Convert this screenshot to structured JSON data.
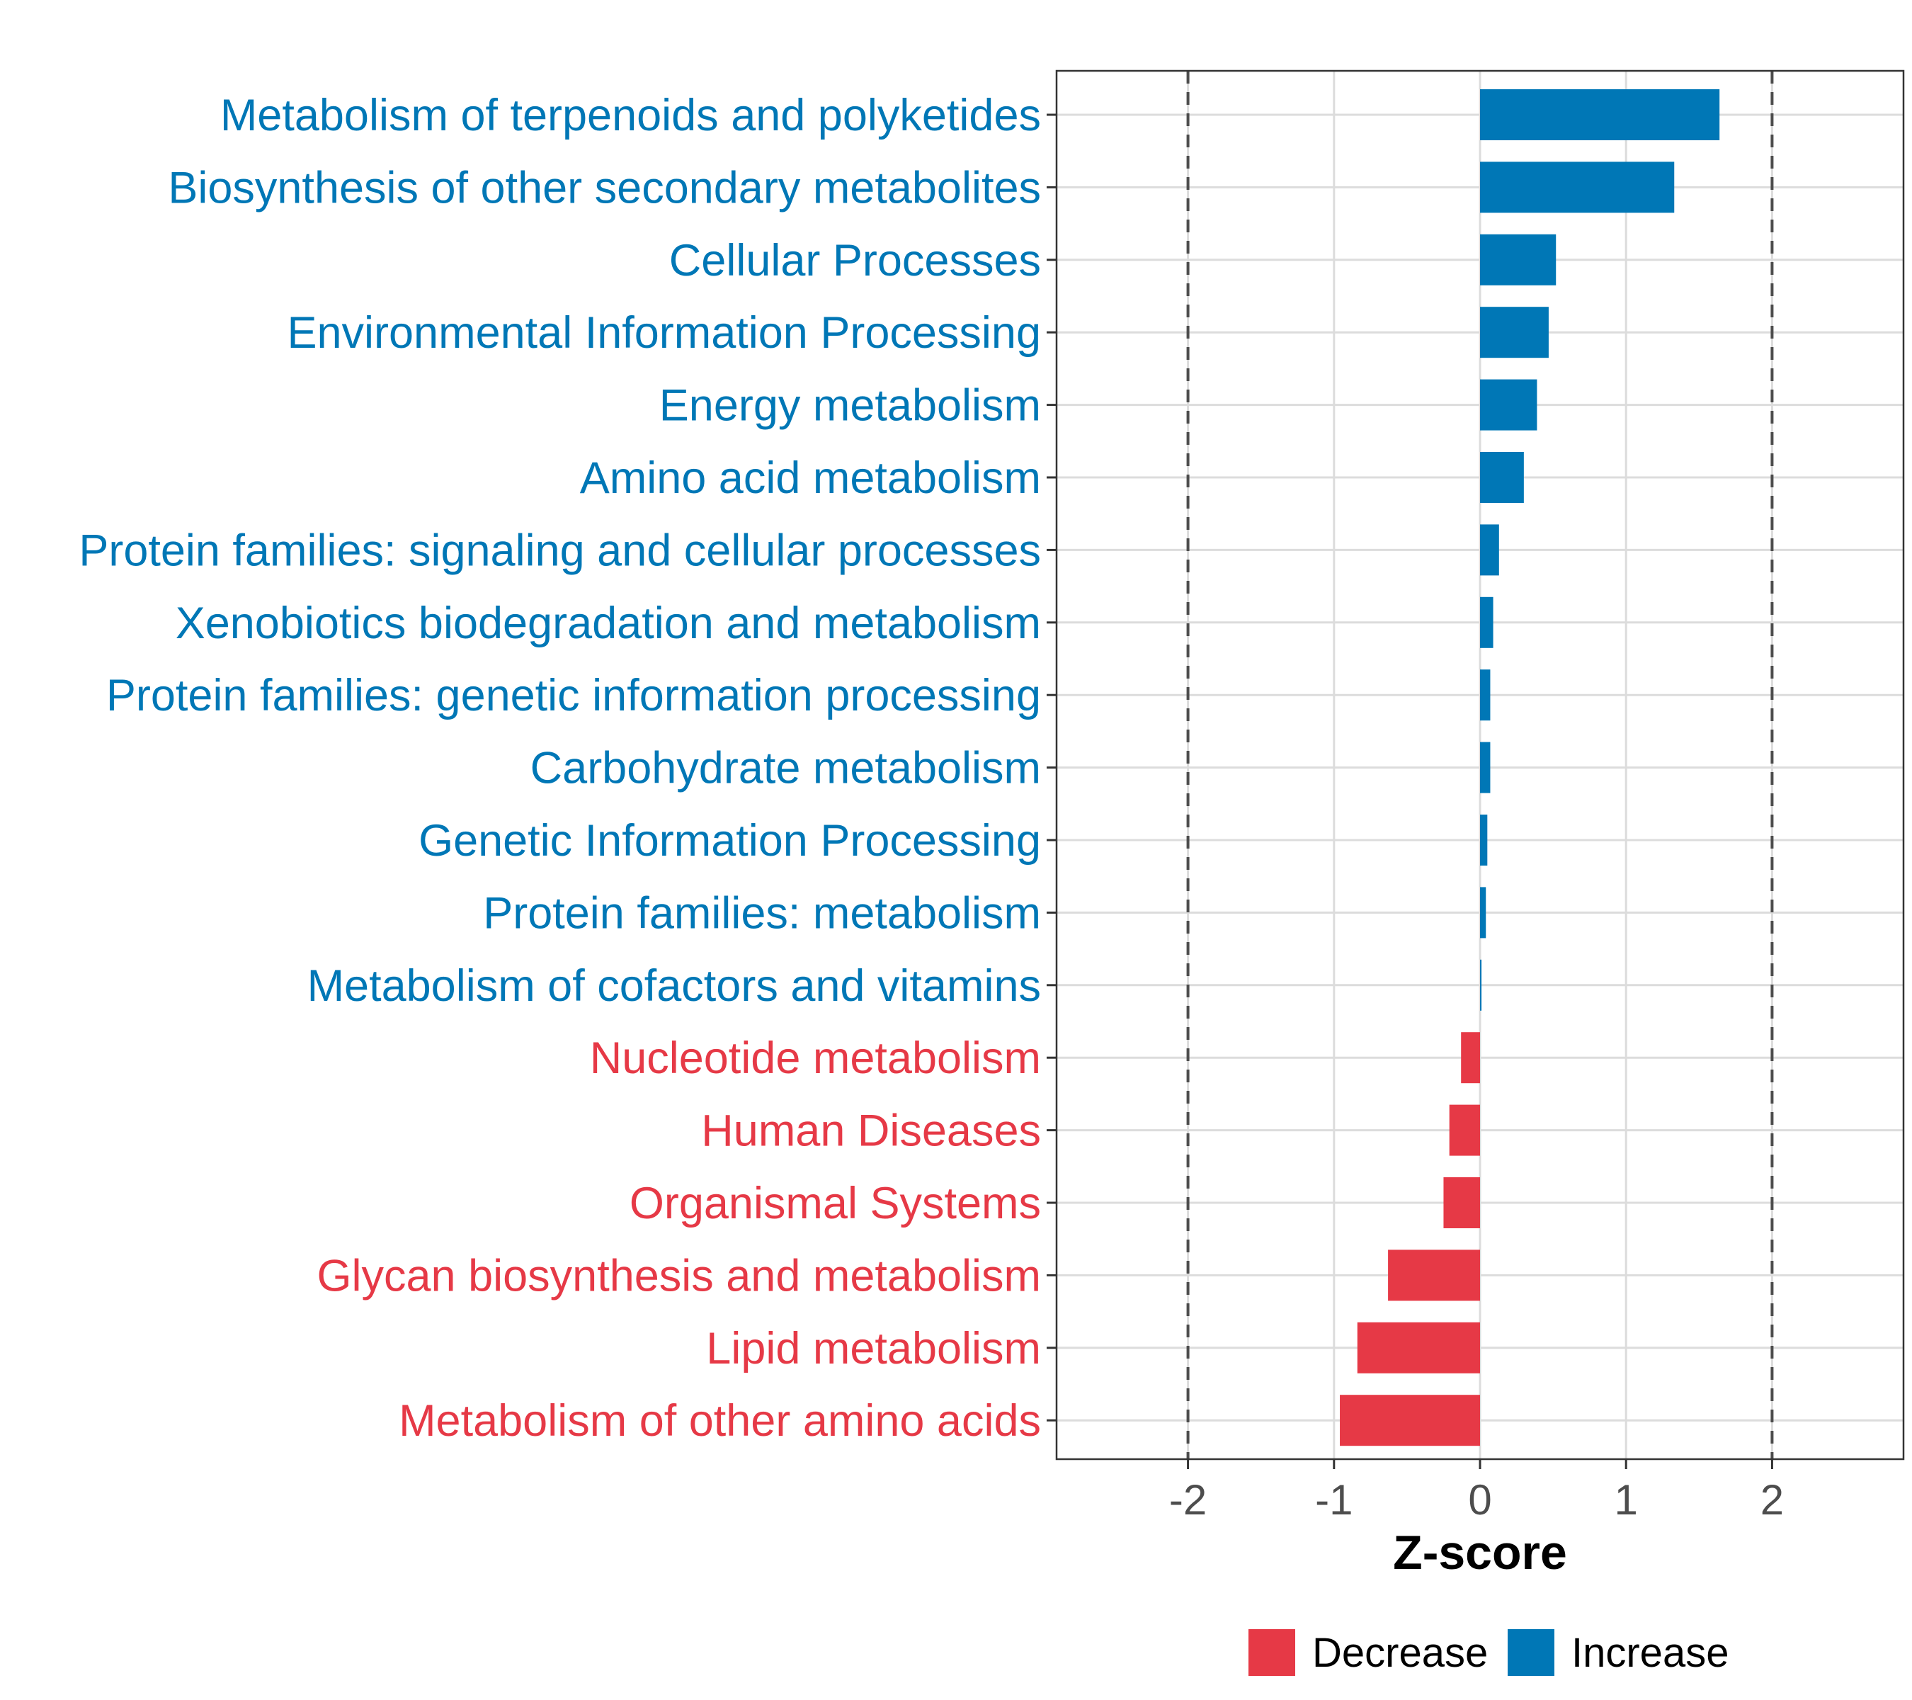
{
  "chart_data": {
    "type": "bar",
    "orientation": "horizontal",
    "title": "",
    "xlabel": "Z-score",
    "ylabel": "",
    "xlim": [
      -2.9,
      2.9
    ],
    "xticks": [
      -2,
      -1,
      0,
      1,
      2
    ],
    "xtick_labels": [
      "-2",
      "-1",
      "0",
      "1",
      "2"
    ],
    "reference_lines": [
      -2,
      2
    ],
    "grid": true,
    "legend_position": "bottom",
    "colors": {
      "Decrease": "#e63946",
      "Increase": "#0077b6"
    },
    "legend": [
      {
        "name": "Decrease",
        "color": "#e63946"
      },
      {
        "name": "Increase",
        "color": "#0077b6"
      }
    ],
    "categories": [
      "Metabolism of terpenoids and polyketides",
      "Biosynthesis of other secondary metabolites",
      "Cellular Processes",
      "Environmental Information Processing",
      "Energy metabolism",
      "Amino acid metabolism",
      "Protein families: signaling and cellular processes",
      "Xenobiotics biodegradation and metabolism",
      "Protein families: genetic information processing",
      "Carbohydrate metabolism",
      "Genetic Information Processing",
      "Protein families: metabolism",
      "Metabolism of cofactors and vitamins",
      "Nucleotide metabolism",
      "Human Diseases",
      "Organismal Systems",
      "Glycan biosynthesis and metabolism",
      "Lipid metabolism",
      "Metabolism of other amino acids"
    ],
    "values": [
      1.64,
      1.33,
      0.52,
      0.47,
      0.39,
      0.3,
      0.13,
      0.09,
      0.07,
      0.07,
      0.05,
      0.04,
      0.01,
      -0.13,
      -0.21,
      -0.25,
      -0.63,
      -0.84,
      -0.96
    ],
    "groups": [
      "Increase",
      "Increase",
      "Increase",
      "Increase",
      "Increase",
      "Increase",
      "Increase",
      "Increase",
      "Increase",
      "Increase",
      "Increase",
      "Increase",
      "Increase",
      "Decrease",
      "Decrease",
      "Decrease",
      "Decrease",
      "Decrease",
      "Decrease"
    ]
  }
}
